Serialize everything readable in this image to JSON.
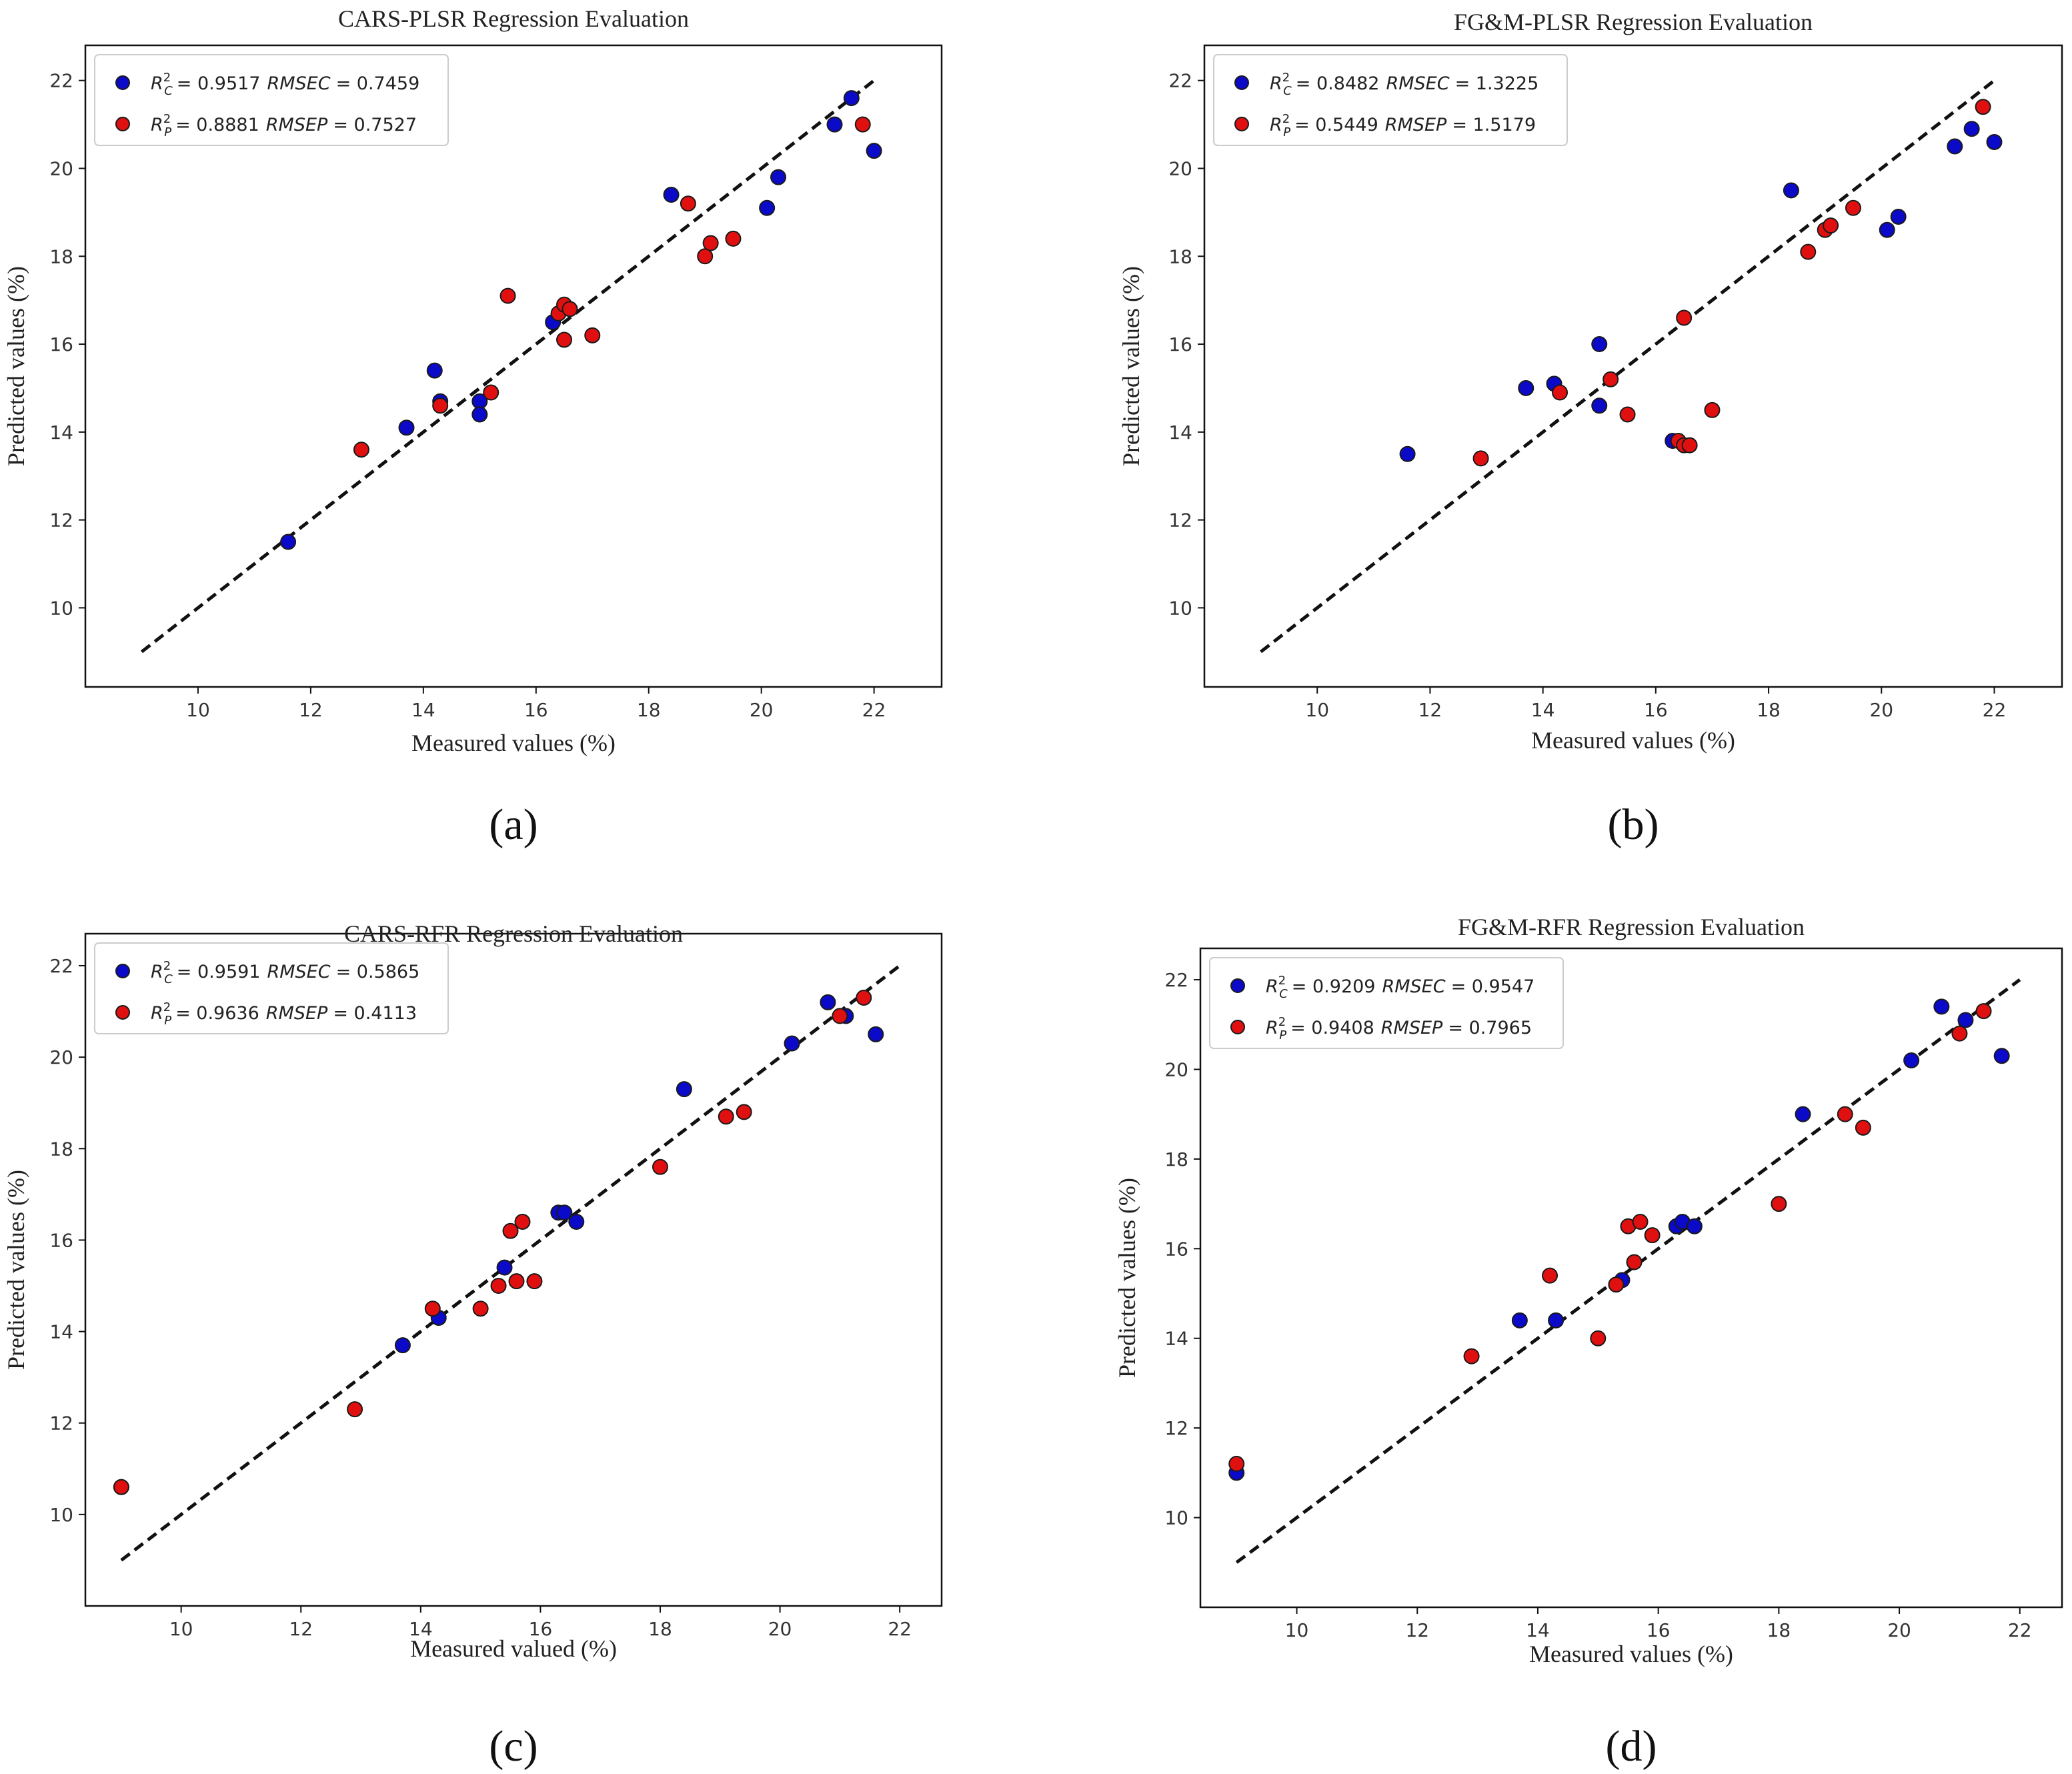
{
  "colors": {
    "calibration": "#0a0ac8",
    "prediction": "#e01010",
    "marker_edge": "#1a1a1a",
    "ideal_line": "#111111",
    "frame": "#111111"
  },
  "chart_data": [
    {
      "type": "scatter",
      "panel_label": "(a)",
      "title": "CARS-PLSR Regression Evaluation",
      "xlabel": "Measured values (%)",
      "ylabel": "Predicted values (%)",
      "xlim": [
        8,
        23.2
      ],
      "ylim": [
        8.2,
        22.8
      ],
      "xticks": [
        10,
        12,
        14,
        16,
        18,
        20,
        22
      ],
      "yticks": [
        10,
        12,
        14,
        16,
        18,
        20,
        22
      ],
      "ideal_line": [
        [
          9,
          9
        ],
        [
          22,
          22
        ]
      ],
      "legend_placement": "top-left",
      "series": [
        {
          "name": "calibration",
          "legend": "R²C = 0.9517 RMSEC = 0.7459",
          "legend_r2": "= 0.9517",
          "legend_rmse": "= 0.7459",
          "rmse_label": "RMSEC",
          "r2_sub": "C",
          "color": "#0a0ac8",
          "points": [
            [
              11.6,
              11.5
            ],
            [
              13.7,
              14.1
            ],
            [
              14.2,
              15.4
            ],
            [
              14.3,
              14.7
            ],
            [
              15.0,
              14.7
            ],
            [
              15.0,
              14.4
            ],
            [
              16.3,
              16.5
            ],
            [
              18.4,
              19.4
            ],
            [
              20.1,
              19.1
            ],
            [
              20.3,
              19.8
            ],
            [
              21.3,
              21.0
            ],
            [
              21.6,
              21.6
            ],
            [
              22.0,
              20.4
            ]
          ]
        },
        {
          "name": "prediction",
          "legend": "R²P = 0.8881 RMSEP = 0.7527",
          "legend_r2": "= 0.8881",
          "legend_rmse": "= 0.7527",
          "rmse_label": "RMSEP",
          "r2_sub": "P",
          "color": "#e01010",
          "points": [
            [
              12.9,
              13.6
            ],
            [
              14.3,
              14.6
            ],
            [
              15.2,
              14.9
            ],
            [
              15.5,
              17.1
            ],
            [
              16.4,
              16.7
            ],
            [
              16.5,
              16.9
            ],
            [
              16.5,
              16.1
            ],
            [
              16.6,
              16.8
            ],
            [
              17.0,
              16.2
            ],
            [
              18.7,
              19.2
            ],
            [
              19.0,
              18.0
            ],
            [
              19.1,
              18.3
            ],
            [
              19.5,
              18.4
            ],
            [
              21.8,
              21.0
            ]
          ]
        }
      ]
    },
    {
      "type": "scatter",
      "panel_label": "(b)",
      "title": "FG&M-PLSR Regression Evaluation",
      "xlabel": "Measured values (%)",
      "ylabel": "Predicted values (%)",
      "xlim": [
        8,
        23.2
      ],
      "ylim": [
        8.2,
        22.8
      ],
      "xticks": [
        10,
        12,
        14,
        16,
        18,
        20,
        22
      ],
      "yticks": [
        10,
        12,
        14,
        16,
        18,
        20,
        22
      ],
      "ideal_line": [
        [
          9,
          9
        ],
        [
          22,
          22
        ]
      ],
      "legend_placement": "top-left",
      "series": [
        {
          "name": "calibration",
          "legend": "R²C = 0.8482 RMSEC = 1.3225",
          "legend_r2": "= 0.8482",
          "legend_rmse": "= 1.3225",
          "rmse_label": "RMSEC",
          "r2_sub": "C",
          "color": "#0a0ac8",
          "points": [
            [
              11.6,
              13.5
            ],
            [
              13.7,
              15.0
            ],
            [
              14.2,
              15.1
            ],
            [
              15.0,
              16.0
            ],
            [
              15.0,
              14.6
            ],
            [
              16.3,
              13.8
            ],
            [
              18.4,
              19.5
            ],
            [
              20.1,
              18.6
            ],
            [
              20.3,
              18.9
            ],
            [
              21.3,
              20.5
            ],
            [
              21.6,
              20.9
            ],
            [
              22.0,
              20.6
            ]
          ]
        },
        {
          "name": "prediction",
          "legend": "R²P = 0.5449 RMSEP = 1.5179",
          "legend_r2": "= 0.5449",
          "legend_rmse": "= 1.5179",
          "rmse_label": "RMSEP",
          "r2_sub": "P",
          "color": "#e01010",
          "points": [
            [
              12.9,
              13.4
            ],
            [
              14.3,
              14.9
            ],
            [
              15.2,
              15.2
            ],
            [
              15.5,
              14.4
            ],
            [
              16.4,
              13.8
            ],
            [
              16.5,
              13.7
            ],
            [
              16.5,
              16.6
            ],
            [
              16.6,
              13.7
            ],
            [
              17.0,
              14.5
            ],
            [
              18.7,
              18.1
            ],
            [
              19.0,
              18.6
            ],
            [
              19.1,
              18.7
            ],
            [
              19.5,
              19.1
            ],
            [
              21.8,
              21.4
            ]
          ]
        }
      ]
    },
    {
      "type": "scatter",
      "panel_label": "(c)",
      "title": "CARS-RFR Regression Evaluation",
      "xlabel": "Measured valued (%)",
      "ylabel": "Predicted values (%)",
      "xlim": [
        8.4,
        22.7
      ],
      "ylim": [
        8.0,
        22.7
      ],
      "xticks": [
        10,
        12,
        14,
        16,
        18,
        20,
        22
      ],
      "yticks": [
        10,
        12,
        14,
        16,
        18,
        20,
        22
      ],
      "ideal_line": [
        [
          9,
          9
        ],
        [
          22,
          22
        ]
      ],
      "legend_placement": "top-left",
      "series": [
        {
          "name": "calibration",
          "legend": "R²C = 0.9591 RMSEC = 0.5865",
          "legend_r2": "= 0.9591",
          "legend_rmse": "= 0.5865",
          "rmse_label": "RMSEC",
          "r2_sub": "C",
          "color": "#0a0ac8",
          "points": [
            [
              9.0,
              10.6
            ],
            [
              13.7,
              13.7
            ],
            [
              14.3,
              14.3
            ],
            [
              15.4,
              15.4
            ],
            [
              16.3,
              16.6
            ],
            [
              16.4,
              16.6
            ],
            [
              16.6,
              16.4
            ],
            [
              18.4,
              19.3
            ],
            [
              20.2,
              20.3
            ],
            [
              20.8,
              21.2
            ],
            [
              21.1,
              20.9
            ],
            [
              21.6,
              20.5
            ]
          ]
        },
        {
          "name": "prediction",
          "legend": "R²P = 0.9636 RMSEP = 0.4113",
          "legend_r2": "= 0.9636",
          "legend_rmse": "= 0.4113",
          "rmse_label": "RMSEP",
          "r2_sub": "P",
          "color": "#e01010",
          "points": [
            [
              9.0,
              10.6
            ],
            [
              12.9,
              12.3
            ],
            [
              14.2,
              14.5
            ],
            [
              15.0,
              14.5
            ],
            [
              15.3,
              15.0
            ],
            [
              15.5,
              16.2
            ],
            [
              15.6,
              15.1
            ],
            [
              15.7,
              16.4
            ],
            [
              15.9,
              15.1
            ],
            [
              18.0,
              17.6
            ],
            [
              19.1,
              18.7
            ],
            [
              19.4,
              18.8
            ],
            [
              21.0,
              20.9
            ],
            [
              21.4,
              21.3
            ]
          ]
        }
      ]
    },
    {
      "type": "scatter",
      "panel_label": "(d)",
      "title": "FG&M-RFR Regression Evaluation",
      "xlabel": "Measured values (%)",
      "ylabel": "Predicted values (%)",
      "xlim": [
        8.4,
        22.7
      ],
      "ylim": [
        8.0,
        22.7
      ],
      "xticks": [
        10,
        12,
        14,
        16,
        18,
        20,
        22
      ],
      "yticks": [
        10,
        12,
        14,
        16,
        18,
        20,
        22
      ],
      "ideal_line": [
        [
          9,
          9
        ],
        [
          22,
          22
        ]
      ],
      "legend_placement": "top-left",
      "series": [
        {
          "name": "calibration",
          "legend": "R²C = 0.9209 RMSEC = 0.9547",
          "legend_r2": "= 0.9209",
          "legend_rmse": "= 0.9547",
          "rmse_label": "RMSEC",
          "r2_sub": "C",
          "color": "#0a0ac8",
          "points": [
            [
              9.0,
              11.0
            ],
            [
              13.7,
              14.4
            ],
            [
              14.3,
              14.4
            ],
            [
              15.4,
              15.3
            ],
            [
              16.3,
              16.5
            ],
            [
              16.4,
              16.6
            ],
            [
              16.6,
              16.5
            ],
            [
              18.4,
              19.0
            ],
            [
              20.2,
              20.2
            ],
            [
              20.7,
              21.4
            ],
            [
              21.1,
              21.1
            ],
            [
              21.7,
              20.3
            ]
          ]
        },
        {
          "name": "prediction",
          "legend": "R²P = 0.9408 RMSEP = 0.7965",
          "legend_r2": "= 0.9408",
          "legend_rmse": "= 0.7965",
          "rmse_label": "RMSEP",
          "r2_sub": "P",
          "color": "#e01010",
          "points": [
            [
              9.0,
              11.2
            ],
            [
              12.9,
              13.6
            ],
            [
              14.2,
              15.4
            ],
            [
              15.0,
              14.0
            ],
            [
              15.3,
              15.2
            ],
            [
              15.5,
              16.5
            ],
            [
              15.6,
              15.7
            ],
            [
              15.7,
              16.6
            ],
            [
              15.9,
              16.3
            ],
            [
              18.0,
              17.0
            ],
            [
              19.1,
              19.0
            ],
            [
              19.4,
              18.7
            ],
            [
              21.0,
              20.8
            ],
            [
              21.4,
              21.3
            ]
          ]
        }
      ]
    }
  ]
}
